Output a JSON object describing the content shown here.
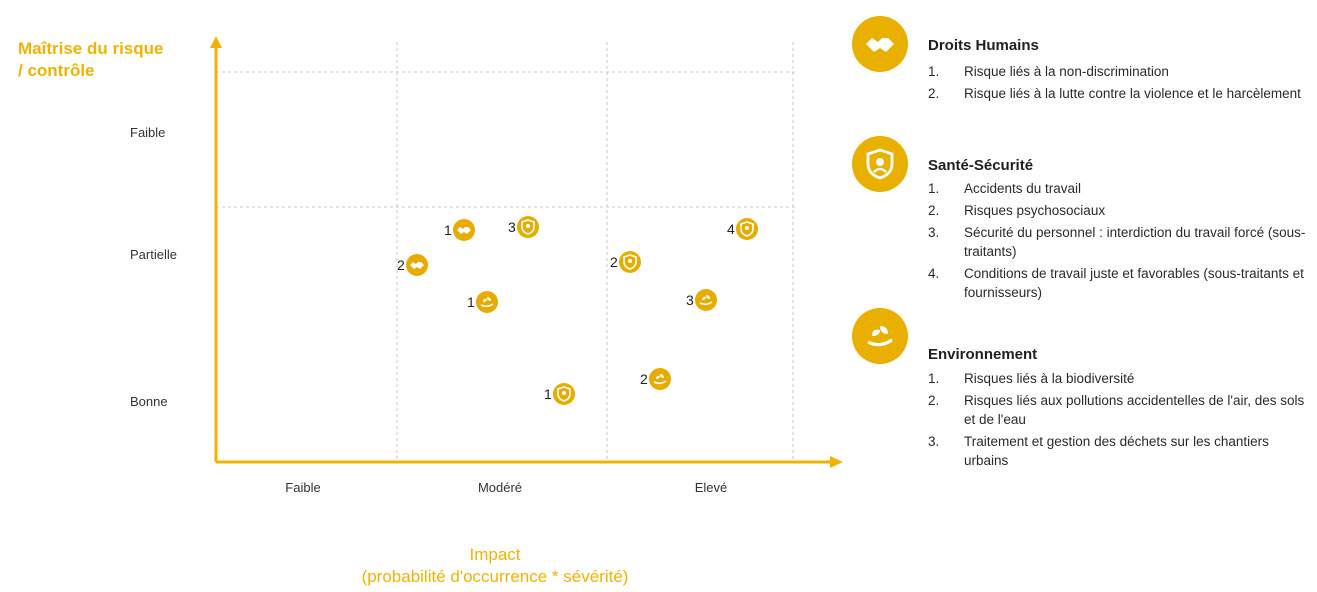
{
  "axes": {
    "y_title": [
      "Maîtrise du risque",
      "/ contrôle"
    ],
    "x_title": [
      "Impact",
      "(probabilité d'occurrence * sévérité)"
    ],
    "y_levels": [
      "Faible",
      "Partielle",
      "Bonne"
    ],
    "x_levels": [
      "Faible",
      "Modéré",
      "Elevé"
    ]
  },
  "colors": {
    "accent": "#f2b300",
    "icon_fill": "#e8ac00"
  },
  "points": [
    {
      "label": "1",
      "icon": "handshake-icon",
      "category": "Droits Humains"
    },
    {
      "label": "2",
      "icon": "handshake-icon",
      "category": "Droits Humains"
    },
    {
      "label": "3",
      "icon": "shield-person-icon",
      "category": "Santé-Sécurité"
    },
    {
      "label": "1",
      "icon": "plant-hand-icon",
      "category": "Environnement"
    },
    {
      "label": "1",
      "icon": "shield-person-icon",
      "category": "Santé-Sécurité"
    },
    {
      "label": "2",
      "icon": "shield-person-icon",
      "category": "Santé-Sécurité"
    },
    {
      "label": "4",
      "icon": "shield-person-icon",
      "category": "Santé-Sécurité"
    },
    {
      "label": "3",
      "icon": "plant-hand-icon",
      "category": "Environnement"
    },
    {
      "label": "2",
      "icon": "plant-hand-icon",
      "category": "Environnement"
    }
  ],
  "legend": [
    {
      "title": "Droits Humains",
      "icon": "handshake-icon",
      "items": [
        "Risque liés à la non-discrimination",
        "Risque liés à la lutte contre la violence et le harcèlement"
      ]
    },
    {
      "title": "Santé-Sécurité",
      "icon": "shield-person-icon",
      "items": [
        "Accidents du travail",
        "Risques psychosociaux",
        "Sécurité du personnel : interdiction du travail forcé (sous-traitants)",
        "Conditions de travail juste et favorables (sous-traitants et fournisseurs)"
      ]
    },
    {
      "title": "Environnement",
      "icon": "plant-hand-icon",
      "items": [
        "Risques liés à la biodiversité",
        "Risques liés aux pollutions accidentelles de l'air, des sols et de l'eau",
        "Traitement et gestion des déchets sur les chantiers urbains"
      ]
    }
  ]
}
